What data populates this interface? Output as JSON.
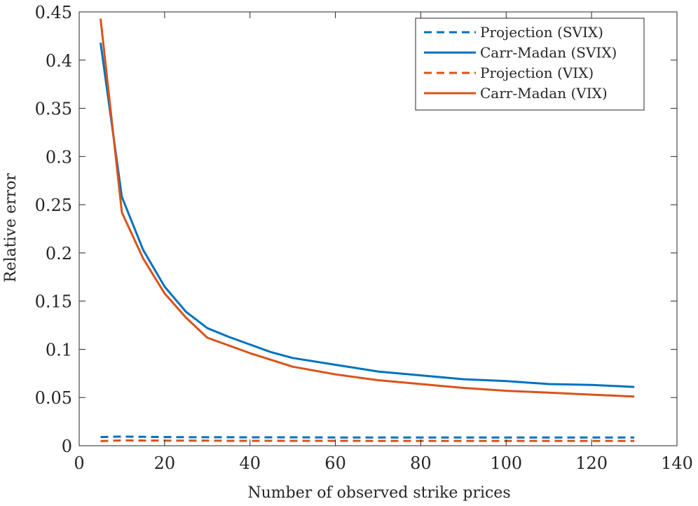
{
  "chart_data": {
    "type": "line",
    "title": "",
    "xlabel": "Number of observed strike prices",
    "ylabel": "Relative error",
    "xlim": [
      0,
      140
    ],
    "ylim": [
      0,
      0.45
    ],
    "xticks": [
      0,
      20,
      40,
      60,
      80,
      100,
      120,
      140
    ],
    "yticks": [
      0,
      0.05,
      0.1,
      0.15,
      0.2,
      0.25,
      0.3,
      0.35,
      0.4,
      0.45
    ],
    "xtick_labels": [
      "0",
      "20",
      "40",
      "60",
      "80",
      "100",
      "120",
      "140"
    ],
    "ytick_labels": [
      "0",
      "0.05",
      "0.1",
      "0.15",
      "0.2",
      "0.25",
      "0.3",
      "0.35",
      "0.4",
      "0.45"
    ],
    "legend_position": "top-right",
    "grid": false,
    "x": [
      5,
      10,
      15,
      20,
      25,
      30,
      35,
      40,
      45,
      50,
      60,
      70,
      80,
      90,
      100,
      110,
      120,
      130
    ],
    "series": [
      {
        "name": "Projection (SVIX)",
        "color": "#0072BD",
        "dash": "dashed",
        "values": [
          0.009,
          0.0095,
          0.0092,
          0.009,
          0.0089,
          0.0088,
          0.0088,
          0.0087,
          0.0087,
          0.0087,
          0.0086,
          0.0086,
          0.0086,
          0.0086,
          0.0086,
          0.0086,
          0.0086,
          0.0086
        ]
      },
      {
        "name": "Carr-Madan (SVIX)",
        "color": "#0072BD",
        "dash": "solid",
        "values": [
          0.418,
          0.258,
          0.203,
          0.165,
          0.139,
          0.122,
          0.113,
          0.105,
          0.097,
          0.091,
          0.084,
          0.077,
          0.073,
          0.069,
          0.067,
          0.064,
          0.063,
          0.061
        ]
      },
      {
        "name": "Projection (VIX)",
        "color": "#D95319",
        "dash": "dashed",
        "values": [
          0.0048,
          0.0055,
          0.0054,
          0.0053,
          0.0052,
          0.0052,
          0.0051,
          0.0051,
          0.0051,
          0.0051,
          0.0051,
          0.005,
          0.005,
          0.005,
          0.005,
          0.005,
          0.005,
          0.005
        ]
      },
      {
        "name": "Carr-Madan (VIX)",
        "color": "#D95319",
        "dash": "solid",
        "values": [
          0.443,
          0.242,
          0.194,
          0.158,
          0.133,
          0.112,
          0.104,
          0.096,
          0.089,
          0.082,
          0.074,
          0.068,
          0.064,
          0.06,
          0.057,
          0.055,
          0.053,
          0.051
        ]
      }
    ]
  }
}
